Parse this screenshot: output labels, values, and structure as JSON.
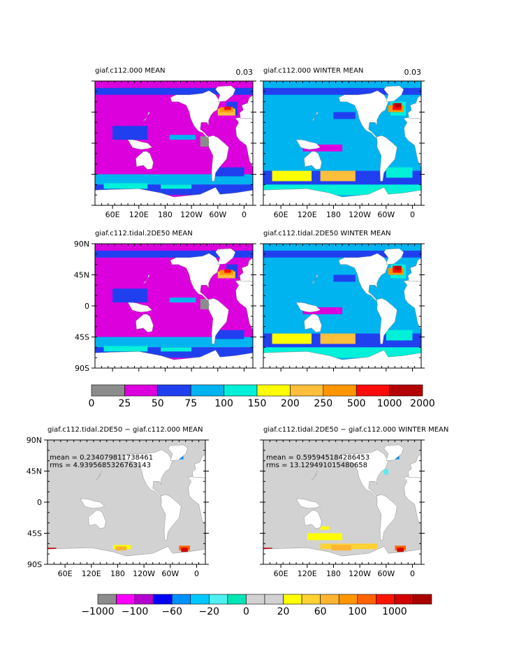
{
  "colors": {
    "mean_palette": [
      "#8c8c8c",
      "#dc00dc",
      "#2040f0",
      "#00b4f0",
      "#00f0d8",
      "#ffff00",
      "#ffbe3c",
      "#ff9600",
      "#ff0a0a",
      "#b40000"
    ],
    "diff_palette": [
      "#8c8c8c",
      "#ff00ff",
      "#b400d0",
      "#0000ff",
      "#0090ff",
      "#00c8ff",
      "#50f0f0",
      "#00e6b4",
      "#d2d2d2",
      "#d2d2d2",
      "#ffff00",
      "#ffd232",
      "#ffb432",
      "#ff9600",
      "#ff6400",
      "#ff1400",
      "#d20000",
      "#aa0000"
    ],
    "land": "#ffffff",
    "ocean_gray": "#d2d2d2"
  },
  "chart_data": [
    {
      "type": "heatmap",
      "id": "p1",
      "title": "giaf.c112.000 MEAN",
      "corner_label": "0.03",
      "x_ticks": [
        "60E",
        "120E",
        "180",
        "120W",
        "60W",
        "0"
      ],
      "y_ticks": [],
      "dominant_bins": [
        1,
        2,
        3
      ],
      "hotspot": "North Atlantic (orange / red)"
    },
    {
      "type": "heatmap",
      "id": "p2",
      "title": "giaf.c112.000 WINTER MEAN",
      "corner_label": "0.03",
      "x_ticks": [
        "60E",
        "120E",
        "180",
        "120W",
        "60W",
        "0"
      ],
      "y_ticks": [],
      "dominant_bins": [
        2,
        3,
        4,
        5,
        6
      ],
      "hotspot": "North Atlantic (red)"
    },
    {
      "type": "heatmap",
      "id": "p3",
      "title": "giaf.c112.tidal.2DE50 MEAN",
      "corner_label": "",
      "x_ticks": [],
      "y_ticks": [
        "90N",
        "45N",
        "0",
        "45S",
        "90S"
      ],
      "dominant_bins": [
        1,
        2,
        3
      ],
      "hotspot": "North Atlantic (orange / red)"
    },
    {
      "type": "heatmap",
      "id": "p4",
      "title": "giaf.c112.tidal.2DE50 WINTER MEAN",
      "corner_label": "",
      "x_ticks": [],
      "y_ticks": [],
      "dominant_bins": [
        2,
        3,
        4,
        5,
        6
      ],
      "hotspot": "North Atlantic (red)"
    },
    {
      "type": "colorbar",
      "id": "cb_mean",
      "labels": [
        "0",
        "25",
        "50",
        "75",
        "100",
        "150",
        "200",
        "250",
        "500",
        "1000",
        "2000"
      ]
    },
    {
      "type": "heatmap",
      "id": "p5",
      "title": "giaf.c112.tidal.2DE50 − giaf.c112.000 MEAN",
      "stat_mean": "mean = 0.234079811738461",
      "stat_rms": "rms = 4.9395685326763143",
      "x_ticks": [
        "60E",
        "120E",
        "180",
        "120W",
        "60W",
        "0"
      ],
      "y_ticks": [
        "90N",
        "45N",
        "0",
        "45S",
        "90S"
      ]
    },
    {
      "type": "heatmap",
      "id": "p6",
      "title": "giaf.c112.tidal.2DE50 − giaf.c112.000 WINTER MEAN",
      "stat_mean": "mean = 0.595945184286453",
      "stat_rms": "rms = 13.129491015480658",
      "x_ticks": [
        "60E",
        "120E",
        "180",
        "120W",
        "60W",
        "0"
      ],
      "y_ticks": []
    },
    {
      "type": "colorbar",
      "id": "cb_diff",
      "labels": [
        "−1000",
        "−100",
        "−60",
        "−20",
        "0",
        "20",
        "60",
        "100",
        "1000"
      ]
    }
  ]
}
